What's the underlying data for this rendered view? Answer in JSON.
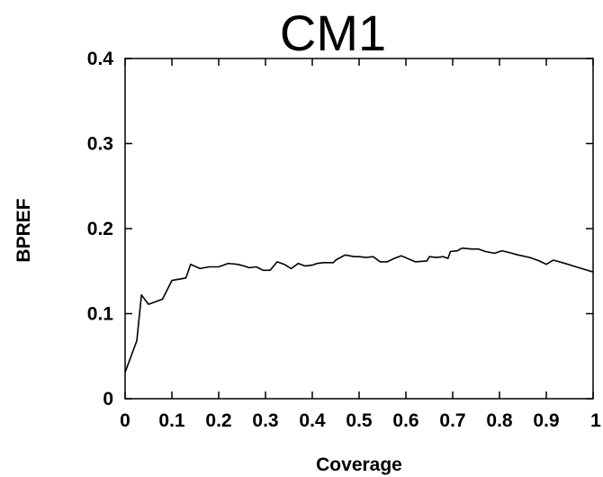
{
  "chart_data": {
    "type": "line",
    "title": "CM1",
    "xlabel": "Coverage",
    "ylabel": "BPREF",
    "xlim": [
      0,
      1
    ],
    "ylim": [
      0,
      0.4
    ],
    "x_ticks": [
      "0",
      "0.1",
      "0.2",
      "0.3",
      "0.4",
      "0.5",
      "0.6",
      "0.7",
      "0.8",
      "0.9",
      "1"
    ],
    "y_ticks": [
      "0",
      "0.1",
      "0.2",
      "0.3",
      "0.4"
    ],
    "grid": false,
    "legend": "none",
    "line_color": "#000000",
    "series": [
      {
        "x": [
          0.0,
          0.025,
          0.035,
          0.05,
          0.08,
          0.1,
          0.12,
          0.13,
          0.14,
          0.16,
          0.18,
          0.2,
          0.22,
          0.24,
          0.255,
          0.265,
          0.28,
          0.295,
          0.31,
          0.325,
          0.34,
          0.355,
          0.37,
          0.385,
          0.4,
          0.41,
          0.425,
          0.445,
          0.45,
          0.47,
          0.49,
          0.5,
          0.515,
          0.53,
          0.545,
          0.56,
          0.575,
          0.59,
          0.62,
          0.645,
          0.65,
          0.665,
          0.68,
          0.69,
          0.695,
          0.71,
          0.72,
          0.74,
          0.755,
          0.77,
          0.79,
          0.805,
          0.82,
          0.84,
          0.865,
          0.885,
          0.9,
          0.915,
          0.94,
          0.97,
          1.0
        ],
        "values": [
          0.031,
          0.068,
          0.122,
          0.111,
          0.117,
          0.139,
          0.141,
          0.142,
          0.158,
          0.153,
          0.155,
          0.155,
          0.159,
          0.158,
          0.156,
          0.154,
          0.155,
          0.151,
          0.151,
          0.161,
          0.158,
          0.153,
          0.159,
          0.156,
          0.157,
          0.159,
          0.16,
          0.16,
          0.163,
          0.169,
          0.167,
          0.167,
          0.166,
          0.167,
          0.161,
          0.161,
          0.165,
          0.168,
          0.161,
          0.162,
          0.167,
          0.166,
          0.167,
          0.165,
          0.173,
          0.174,
          0.177,
          0.176,
          0.176,
          0.173,
          0.171,
          0.174,
          0.172,
          0.169,
          0.166,
          0.162,
          0.158,
          0.163,
          0.159,
          0.154,
          0.149
        ]
      }
    ]
  }
}
